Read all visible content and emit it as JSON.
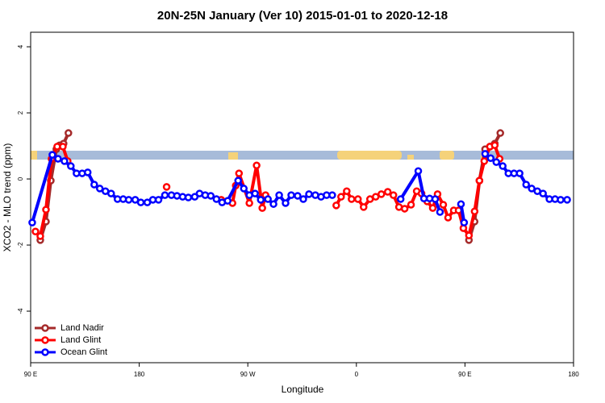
{
  "chart_data": {
    "type": "line",
    "title": "20N-25N January (Ver 10)   2015-01-01 to 2020-12-18",
    "x_label": "Longitude",
    "y_label": "XCO2 - MLO trend (ppm)",
    "xlim": [
      90,
      540
    ],
    "xticks": [
      {
        "value": 90,
        "label": "90 E"
      },
      180,
      {
        "value": 270,
        "label": "90 W"
      },
      {
        "value": 360,
        "label": "0"
      },
      {
        "value": 450,
        "label": "90 E"
      },
      {
        "value": 540,
        "label": "180"
      }
    ],
    "ylim": [
      -5.56,
      4.44
    ],
    "yticks": [
      -4,
      -2,
      0,
      2,
      4
    ],
    "legend": "bottom-left",
    "series": [
      {
        "name": "Land Nadir",
        "color": "#a52a2a",
        "x": [
          98,
          102.7,
          106.7,
          111.3,
          114,
          117.3,
          121.3,
          null,
          453.3,
          458,
          462,
          466.7,
          470.7,
          474.7,
          479.3
        ],
        "values": [
          -1.85,
          -1.29,
          -0.05,
          0.9,
          1.02,
          1.07,
          1.39,
          null,
          -1.85,
          -1.29,
          -0.05,
          0.9,
          0.98,
          1.07,
          1.39
        ]
      },
      {
        "name": "Land Glint",
        "color": "#ff0000",
        "x": [
          94,
          98,
          102.7,
          107.3,
          112,
          116.7,
          120.7,
          null,
          202.7,
          null,
          248,
          257.3,
          260,
          262.7,
          271.3,
          277.3,
          282,
          284.7,
          null,
          343.3,
          347.3,
          352,
          356,
          361.3,
          366,
          371.3,
          376,
          380.7,
          386,
          390.7,
          395.3,
          400,
          405.3,
          410,
          414,
          418.7,
          423.3,
          427.3,
          432,
          436,
          440.7,
          444.7,
          448.7,
          453.3,
          458,
          462,
          466,
          470.7,
          474.7,
          478.7
        ],
        "values": [
          -1.59,
          -1.73,
          -0.93,
          0.61,
          0.98,
          0.98,
          0.54,
          null,
          -0.24,
          null,
          -0.63,
          -0.73,
          -0.2,
          0.17,
          -0.73,
          0.41,
          -0.88,
          -0.49,
          null,
          -0.8,
          -0.54,
          -0.37,
          -0.61,
          -0.61,
          -0.85,
          -0.61,
          -0.54,
          -0.46,
          -0.39,
          -0.49,
          -0.85,
          -0.9,
          -0.78,
          -0.37,
          -0.44,
          -0.68,
          -0.88,
          -0.46,
          -0.78,
          -1.17,
          -0.95,
          -0.95,
          -1.49,
          -1.71,
          -0.98,
          -0.05,
          0.54,
          0.98,
          1.02,
          0.61
        ]
      },
      {
        "name": "Ocean Glint",
        "color": "#0000ff",
        "x": [
          91.3,
          108,
          112.7,
          118,
          123.3,
          128,
          132.7,
          137.3,
          142.7,
          147.3,
          152,
          156.7,
          162,
          166.7,
          171.3,
          176.7,
          181.3,
          186.7,
          191.3,
          196,
          201.3,
          206.7,
          211.3,
          216,
          220.7,
          226,
          230,
          234.7,
          239.3,
          244,
          248.7,
          253.3,
          262,
          266.7,
          271.3,
          276,
          280.7,
          286.7,
          291.3,
          296,
          301.3,
          306,
          311.3,
          316,
          320.7,
          326,
          330.7,
          335.3,
          340,
          null,
          396.7,
          411.3,
          416,
          420.7,
          425.3,
          429.3,
          null,
          446.7,
          449.3,
          null,
          466.7,
          471.3,
          476,
          481.3,
          486,
          490.7,
          495.3,
          500.7,
          505.3,
          510,
          514.7,
          520,
          524.7,
          529.3,
          534.7
        ],
        "values": [
          -1.32,
          0.73,
          0.61,
          0.54,
          0.39,
          0.17,
          0.17,
          0.2,
          -0.17,
          -0.29,
          -0.37,
          -0.44,
          -0.61,
          -0.61,
          -0.63,
          -0.63,
          -0.71,
          -0.71,
          -0.63,
          -0.63,
          -0.49,
          -0.49,
          -0.51,
          -0.54,
          -0.56,
          -0.54,
          -0.44,
          -0.49,
          -0.51,
          -0.61,
          -0.71,
          -0.66,
          -0.05,
          -0.29,
          -0.49,
          -0.44,
          -0.63,
          -0.61,
          -0.76,
          -0.49,
          -0.73,
          -0.49,
          -0.51,
          -0.61,
          -0.46,
          -0.49,
          -0.54,
          -0.49,
          -0.49,
          null,
          -0.61,
          0.24,
          -0.59,
          -0.59,
          -0.61,
          -1.0,
          null,
          -0.76,
          -1.32,
          null,
          0.76,
          0.63,
          0.51,
          0.39,
          0.17,
          0.17,
          0.17,
          -0.17,
          -0.29,
          -0.37,
          -0.44,
          -0.61,
          -0.61,
          -0.63,
          -0.63
        ]
      }
    ]
  }
}
